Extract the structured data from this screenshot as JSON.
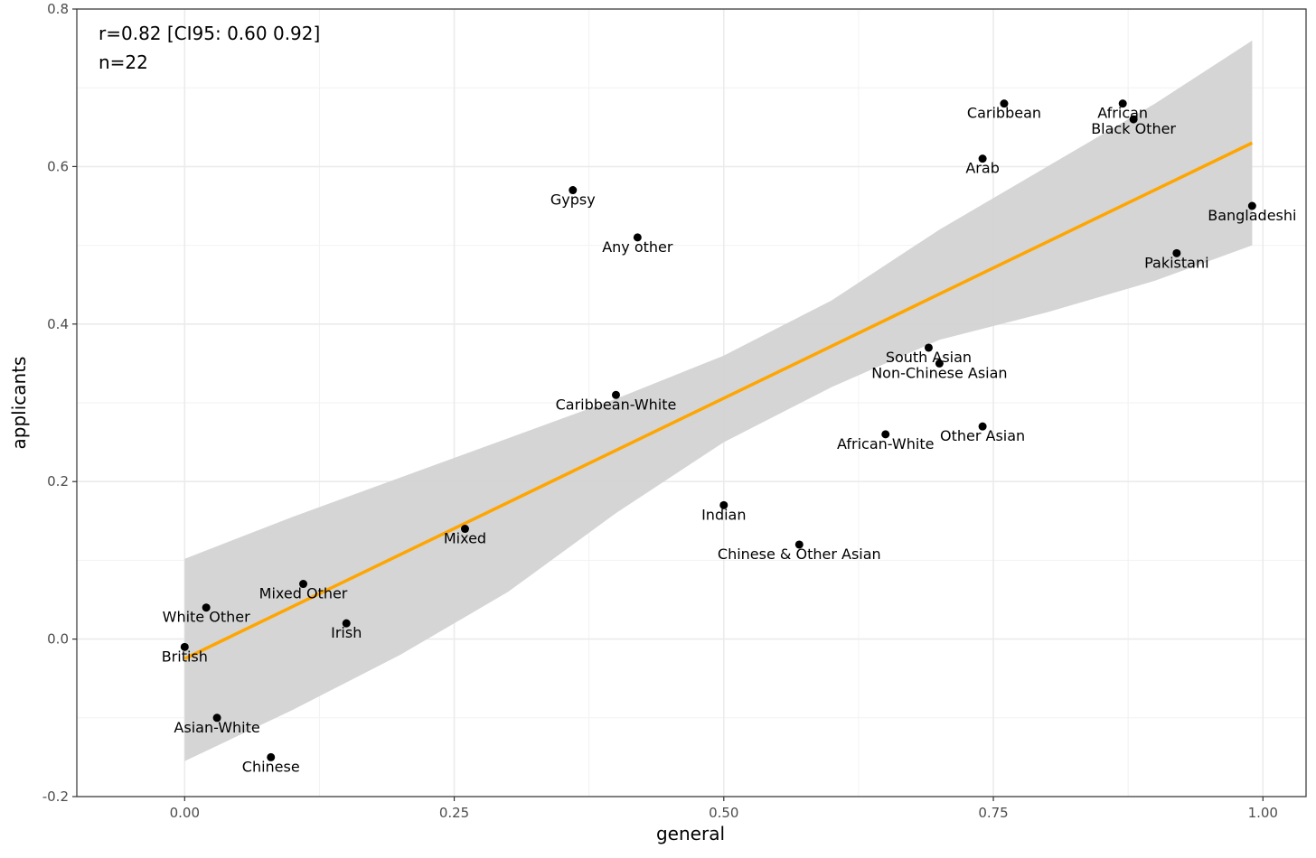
{
  "chart_data": {
    "type": "scatter",
    "xlabel": "general",
    "ylabel": "applicants",
    "xlim": [
      -0.1,
      1.04
    ],
    "ylim": [
      -0.2,
      0.8
    ],
    "x_ticks": [
      0.0,
      0.25,
      0.5,
      0.75,
      1.0
    ],
    "x_tick_labels": [
      "0.00",
      "0.25",
      "0.50",
      "0.75",
      "1.00"
    ],
    "y_ticks": [
      -0.2,
      0.0,
      0.2,
      0.4,
      0.6,
      0.8
    ],
    "y_tick_labels": [
      "-0.2",
      "0.0",
      "0.2",
      "0.4",
      "0.6",
      "0.8"
    ],
    "grid": true,
    "annotations": [
      "r=0.82 [CI95: 0.60 0.92]",
      "n=22"
    ],
    "points": [
      {
        "label": "British",
        "x": 0.0,
        "y": -0.01
      },
      {
        "label": "White Other",
        "x": 0.02,
        "y": 0.04
      },
      {
        "label": "Asian-White",
        "x": 0.03,
        "y": -0.1
      },
      {
        "label": "Chinese",
        "x": 0.08,
        "y": -0.15
      },
      {
        "label": "Mixed Other",
        "x": 0.11,
        "y": 0.07
      },
      {
        "label": "Irish",
        "x": 0.15,
        "y": 0.02
      },
      {
        "label": "Mixed",
        "x": 0.26,
        "y": 0.14
      },
      {
        "label": "Gypsy",
        "x": 0.36,
        "y": 0.57
      },
      {
        "label": "Caribbean-White",
        "x": 0.4,
        "y": 0.31
      },
      {
        "label": "Any other",
        "x": 0.42,
        "y": 0.51
      },
      {
        "label": "Indian",
        "x": 0.5,
        "y": 0.17
      },
      {
        "label": "Chinese & Other Asian",
        "x": 0.57,
        "y": 0.12
      },
      {
        "label": "African-White",
        "x": 0.65,
        "y": 0.26
      },
      {
        "label": "South Asian",
        "x": 0.69,
        "y": 0.37
      },
      {
        "label": "Non-Chinese Asian",
        "x": 0.7,
        "y": 0.35
      },
      {
        "label": "Arab",
        "x": 0.74,
        "y": 0.61
      },
      {
        "label": "Other Asian",
        "x": 0.74,
        "y": 0.27
      },
      {
        "label": "Caribbean",
        "x": 0.76,
        "y": 0.68
      },
      {
        "label": "African",
        "x": 0.87,
        "y": 0.68
      },
      {
        "label": "Black Other",
        "x": 0.88,
        "y": 0.66
      },
      {
        "label": "Pakistani",
        "x": 0.92,
        "y": 0.49
      },
      {
        "label": "Bangladeshi",
        "x": 0.99,
        "y": 0.55
      }
    ],
    "fit_line": {
      "x": [
        0.0,
        0.99
      ],
      "y": [
        -0.025,
        0.63
      ],
      "color": "#FFA500"
    },
    "confidence_band": {
      "x": [
        0.0,
        0.1,
        0.2,
        0.3,
        0.4,
        0.5,
        0.6,
        0.7,
        0.8,
        0.9,
        0.99
      ],
      "upper": [
        0.102,
        0.155,
        0.205,
        0.255,
        0.305,
        0.36,
        0.43,
        0.52,
        0.6,
        0.68,
        0.76
      ],
      "lower": [
        -0.155,
        -0.09,
        -0.02,
        0.06,
        0.16,
        0.25,
        0.32,
        0.38,
        0.415,
        0.455,
        0.5
      ],
      "color": "#d3d3d3"
    },
    "colors": {
      "point": "#000000",
      "fit_line": "#FFA500",
      "band": "#d3d3d3",
      "grid_major": "#ebebeb",
      "grid_minor": "#f2f2f2",
      "frame": "#333333"
    }
  }
}
